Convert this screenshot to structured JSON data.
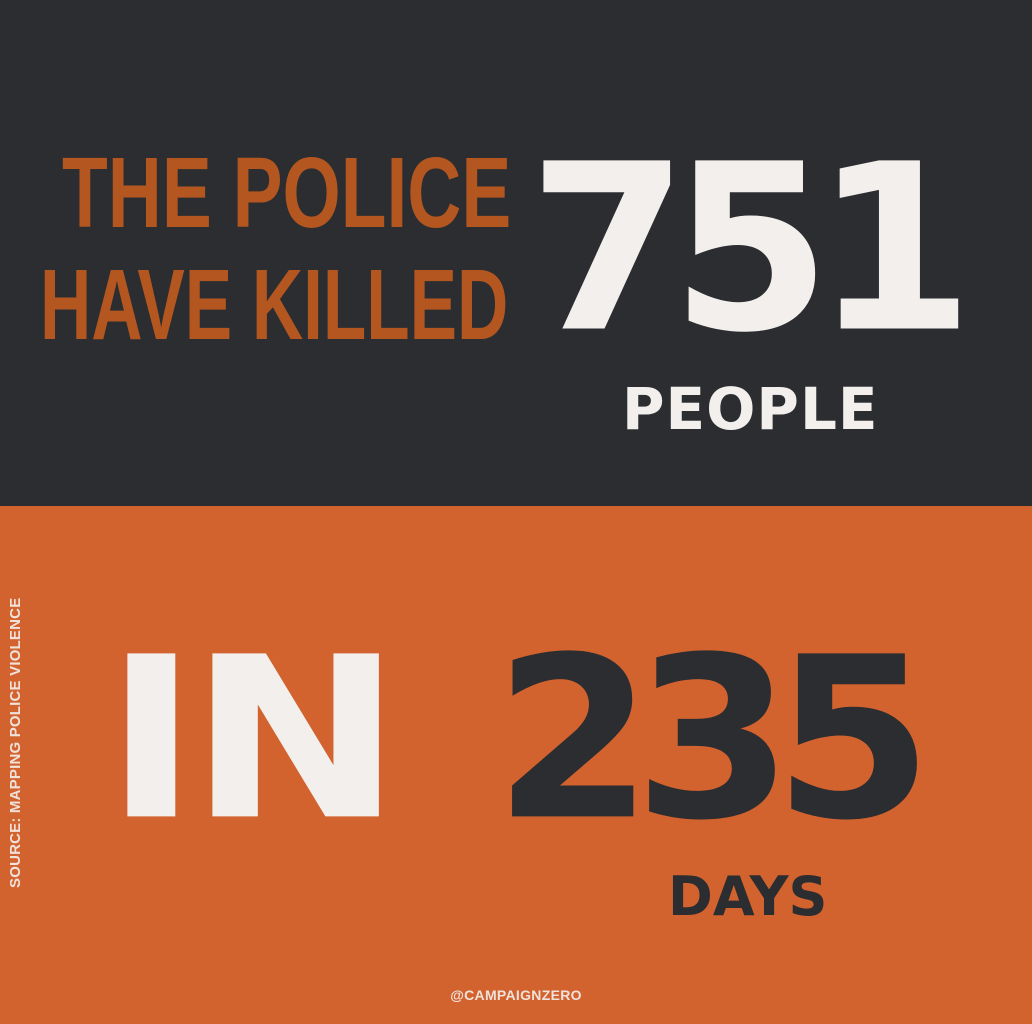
{
  "colors": {
    "dark_panel": "#2b2d30",
    "orange_panel": "#d2632f",
    "headline_orange": "#b4561f",
    "off_white": "#f3efed"
  },
  "headline": {
    "line1": "THE POLICE",
    "line2": "HAVE KILLED"
  },
  "killed": {
    "count": "751",
    "unit": "PEOPLE"
  },
  "timeframe": {
    "preposition": "IN",
    "count": "235",
    "unit": "DAYS"
  },
  "source": "SOURCE: MAPPING POLICE VIOLENCE",
  "handle": "@CAMPAIGNZERO"
}
